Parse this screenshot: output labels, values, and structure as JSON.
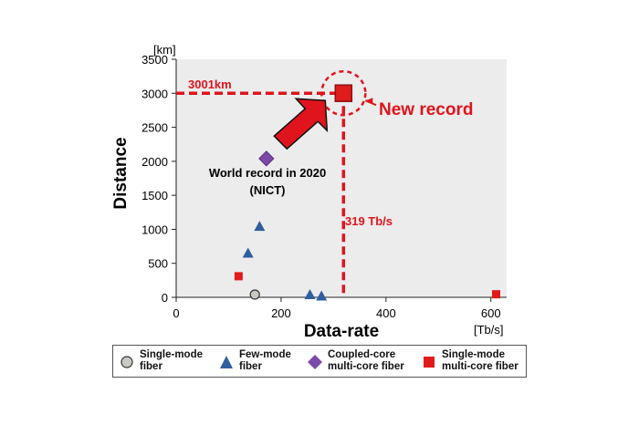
{
  "chart_data": {
    "type": "scatter",
    "xlabel": "Data-rate",
    "ylabel": "Distance",
    "x_unit": "[Tb/s]",
    "y_unit": "[km]",
    "xlim": [
      0,
      630
    ],
    "ylim": [
      0,
      3500
    ],
    "xticks": [
      0,
      200,
      400,
      600
    ],
    "yticks": [
      0,
      500,
      1000,
      1500,
      2000,
      2500,
      3000,
      3500
    ],
    "grid": false,
    "plot_background": "#ececec",
    "series": [
      {
        "name": "Single-mode fiber",
        "marker": "circle",
        "color": "#c9c9c1",
        "points": [
          {
            "x": 150,
            "y": 40
          }
        ]
      },
      {
        "name": "Few-mode fiber",
        "marker": "triangle",
        "color": "#2f5f9e",
        "points": [
          {
            "x": 137,
            "y": 650
          },
          {
            "x": 159,
            "y": 1045
          },
          {
            "x": 255,
            "y": 40
          },
          {
            "x": 277,
            "y": 20
          }
        ]
      },
      {
        "name": "Coupled-core multi-core fiber",
        "marker": "diamond",
        "color": "#7b4aa6",
        "points": [
          {
            "x": 172,
            "y": 2040
          }
        ]
      },
      {
        "name": "Single-mode multi-core fiber",
        "marker": "square",
        "color": "#e01b1b",
        "points": [
          {
            "x": 119,
            "y": 310
          },
          {
            "x": 319,
            "y": 3001
          },
          {
            "x": 610,
            "y": 45
          }
        ]
      }
    ],
    "highlight": {
      "x": 319,
      "y": 3001
    },
    "annotations": {
      "y_line_label": "3001km",
      "x_line_label": "319 Tb/s",
      "new_record": "New record",
      "world_record_line1": "World record in 2020",
      "world_record_line2": "(NICT)"
    },
    "legend": [
      {
        "line1": "Single-mode",
        "line2": "fiber"
      },
      {
        "line1": "Few-mode",
        "line2": "fiber"
      },
      {
        "line1": "Coupled-core",
        "line2": "multi-core fiber"
      },
      {
        "line1": "Single-mode",
        "line2": "multi-core fiber"
      }
    ],
    "colors": {
      "accent_red": "#e0141c"
    }
  }
}
